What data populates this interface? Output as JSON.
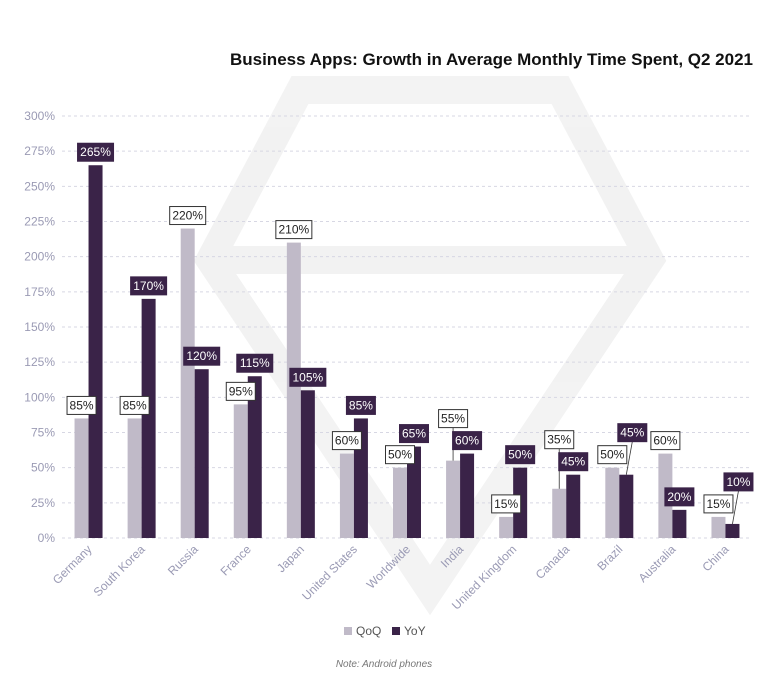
{
  "title": "Business Apps: Growth in Average Monthly Time Spent, Q2 2021",
  "note": "Note: Android phones",
  "colors": {
    "qoq": "#c0bac8",
    "yoy": "#3a2348",
    "axis_text": "#9a9ab4",
    "grid": "#d7d7e3"
  },
  "legend": {
    "qoq_label": "QoQ",
    "yoy_label": "YoY"
  },
  "chart_data": {
    "type": "bar",
    "title": "Business Apps: Growth in Average Monthly Time Spent, Q2 2021",
    "categories": [
      "Germany",
      "South Korea",
      "Russia",
      "France",
      "Japan",
      "United States",
      "Worldwide",
      "India",
      "United Kingdom",
      "Canada",
      "Brazil",
      "Australia",
      "China"
    ],
    "series": [
      {
        "name": "QoQ",
        "values": [
          85,
          85,
          220,
          95,
          210,
          60,
          50,
          55,
          15,
          35,
          50,
          60,
          15
        ]
      },
      {
        "name": "YoY",
        "values": [
          265,
          170,
          120,
          115,
          105,
          85,
          65,
          60,
          50,
          45,
          45,
          20,
          10
        ]
      }
    ],
    "ylim": [
      0,
      300
    ],
    "yticks": [
      0,
      25,
      50,
      75,
      100,
      125,
      150,
      175,
      200,
      225,
      250,
      275,
      300
    ],
    "ytick_labels": [
      "0%",
      "25%",
      "50%",
      "75%",
      "100%",
      "125%",
      "150%",
      "175%",
      "200%",
      "225%",
      "250%",
      "275%",
      "300%"
    ],
    "data_labels": {
      "QoQ": [
        "85%",
        "85%",
        "220%",
        "95%",
        "210%",
        "60%",
        "50%",
        "55%",
        "15%",
        "35%",
        "50%",
        "60%",
        "15%"
      ],
      "YoY": [
        "265%",
        "170%",
        "120%",
        "115%",
        "105%",
        "85%",
        "65%",
        "60%",
        "50%",
        "45%",
        "45%",
        "20%",
        "10%"
      ]
    },
    "grid": true,
    "legend_position": "bottom-center"
  }
}
